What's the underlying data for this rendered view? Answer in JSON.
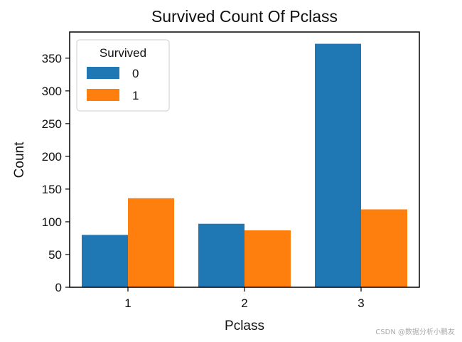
{
  "chart_data": {
    "type": "bar",
    "title": "Survived Count Of Pclass",
    "xlabel": "Pclass",
    "ylabel": "Count",
    "categories": [
      "1",
      "2",
      "3"
    ],
    "series": [
      {
        "name": "0",
        "values": [
          80,
          97,
          372
        ],
        "color": "#1f77b4"
      },
      {
        "name": "1",
        "values": [
          136,
          87,
          119
        ],
        "color": "#ff7f0e"
      }
    ],
    "ylim": [
      0,
      390
    ],
    "yticks": [
      0,
      50,
      100,
      150,
      200,
      250,
      300,
      350
    ],
    "legend": {
      "title": "Survived",
      "placement": "top-left"
    },
    "grid": false
  },
  "watermark": "CSDN @数据分析小鹏友"
}
